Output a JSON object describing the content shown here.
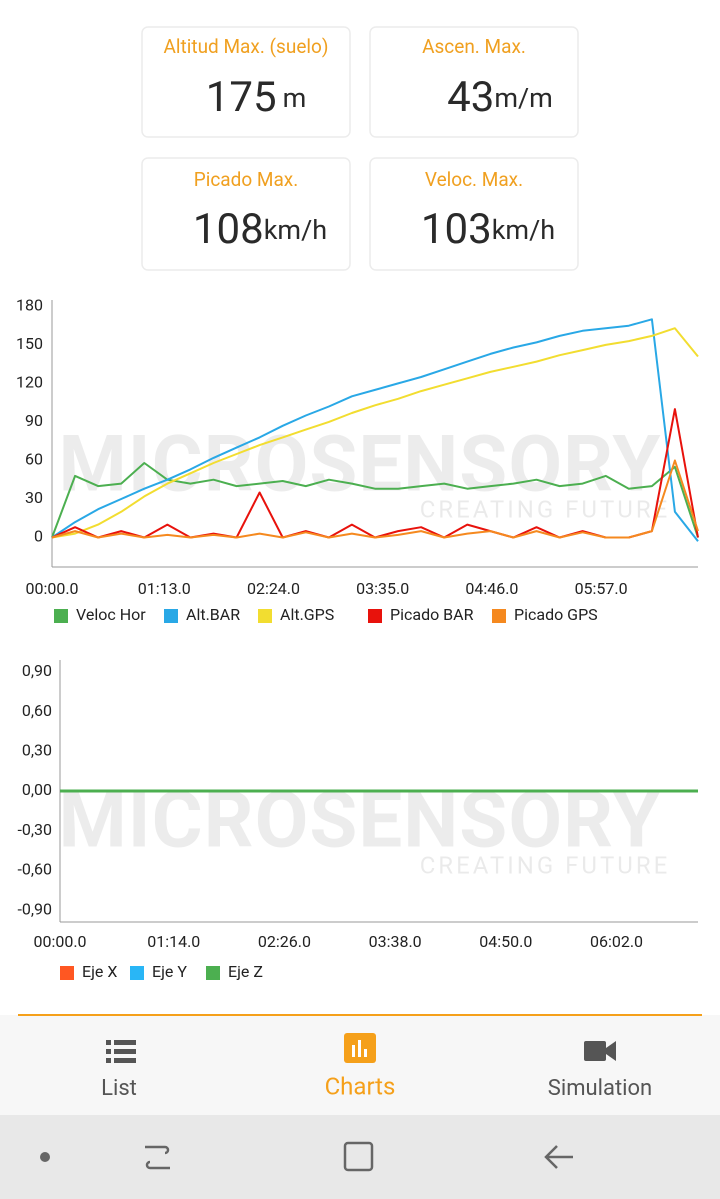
{
  "stats": [
    {
      "label": "Altitud Max. (suelo)",
      "value": 175,
      "unit": "m"
    },
    {
      "label": "Ascen. Max.",
      "value": 43,
      "unit": "m/m"
    },
    {
      "label": "Picado Max.",
      "value": 108,
      "unit": "km/h"
    },
    {
      "label": "Veloc. Max.",
      "value": 103,
      "unit": "km/h"
    }
  ],
  "watermark": {
    "brand": "MICROSENSORY",
    "tagline": "CREATING FUTURE"
  },
  "chart_data": [
    {
      "type": "line",
      "x": [
        0,
        15,
        30,
        45,
        60,
        75,
        90,
        105,
        120,
        135,
        150,
        165,
        180,
        195,
        210,
        225,
        240,
        255,
        270,
        285,
        300,
        315,
        330,
        345,
        360,
        375,
        390,
        405,
        420
      ],
      "xlim": [
        0,
        420
      ],
      "xticks": [
        {
          "value": 0,
          "label": "00:00.0"
        },
        {
          "value": 73,
          "label": "01:13.0"
        },
        {
          "value": 144,
          "label": "02:24.0"
        },
        {
          "value": 215,
          "label": "03:35.0"
        },
        {
          "value": 286,
          "label": "04:46.0"
        },
        {
          "value": 357,
          "label": "05:57.0"
        }
      ],
      "ylim": [
        -23,
        185
      ],
      "yticks": [
        0,
        30,
        60,
        90,
        120,
        150,
        180
      ],
      "grid": false,
      "legend": "bottom-left",
      "series": [
        {
          "name": "Veloc Hor",
          "color": "#4caf50",
          "values": [
            0,
            48,
            40,
            42,
            58,
            45,
            42,
            45,
            40,
            42,
            44,
            40,
            45,
            42,
            38,
            38,
            40,
            42,
            38,
            40,
            42,
            45,
            40,
            42,
            48,
            38,
            40,
            55,
            0
          ]
        },
        {
          "name": "Alt.BAR",
          "color": "#29a8e6",
          "values": [
            0,
            12,
            22,
            30,
            38,
            45,
            53,
            62,
            70,
            78,
            87,
            95,
            102,
            110,
            115,
            120,
            125,
            131,
            137,
            143,
            148,
            152,
            157,
            161,
            163,
            165,
            170,
            20,
            -3
          ]
        },
        {
          "name": "Alt.GPS",
          "color": "#f2dd30",
          "values": [
            0,
            3,
            10,
            20,
            32,
            42,
            50,
            58,
            65,
            72,
            78,
            84,
            90,
            97,
            103,
            108,
            114,
            119,
            124,
            129,
            133,
            137,
            142,
            146,
            150,
            153,
            157,
            163,
            141
          ]
        },
        {
          "name": "Picado BAR",
          "color": "#e8120c",
          "values": [
            0,
            8,
            0,
            5,
            0,
            10,
            0,
            3,
            0,
            35,
            0,
            5,
            0,
            10,
            0,
            5,
            8,
            0,
            10,
            5,
            0,
            8,
            0,
            5,
            0,
            0,
            5,
            100,
            0
          ]
        },
        {
          "name": "Picado GPS",
          "color": "#f5891f",
          "values": [
            0,
            5,
            0,
            3,
            0,
            2,
            0,
            2,
            0,
            3,
            0,
            4,
            0,
            3,
            0,
            2,
            5,
            0,
            3,
            5,
            0,
            5,
            0,
            4,
            0,
            0,
            5,
            60,
            5
          ]
        }
      ]
    },
    {
      "type": "line",
      "x": [
        0,
        415
      ],
      "xlim": [
        0,
        415
      ],
      "xticks": [
        {
          "value": 0,
          "label": "00:00.0"
        },
        {
          "value": 74,
          "label": "01:14.0"
        },
        {
          "value": 146,
          "label": "02:26.0"
        },
        {
          "value": 218,
          "label": "03:38.0"
        },
        {
          "value": 290,
          "label": "04:50.0"
        },
        {
          "value": 362,
          "label": "06:02.0"
        }
      ],
      "ylim": [
        -0.99,
        0.99
      ],
      "yticks": [
        {
          "value": -0.9,
          "label": "-0,90"
        },
        {
          "value": -0.6,
          "label": "-0,60"
        },
        {
          "value": -0.3,
          "label": "-0,30"
        },
        {
          "value": 0,
          "label": "0,00"
        },
        {
          "value": 0.3,
          "label": "0,30"
        },
        {
          "value": 0.6,
          "label": "0,60"
        },
        {
          "value": 0.9,
          "label": "0,90"
        }
      ],
      "grid": false,
      "legend": "bottom-left",
      "series": [
        {
          "name": "Eje X",
          "color": "#ff5722",
          "values": [
            0,
            0
          ]
        },
        {
          "name": "Eje Y",
          "color": "#29b6f6",
          "values": [
            0,
            0
          ]
        },
        {
          "name": "Eje Z",
          "color": "#4caf50",
          "values": [
            0,
            0
          ]
        }
      ]
    }
  ],
  "nav": [
    {
      "label": "List"
    },
    {
      "label": "Charts"
    },
    {
      "label": "Simulation"
    }
  ]
}
